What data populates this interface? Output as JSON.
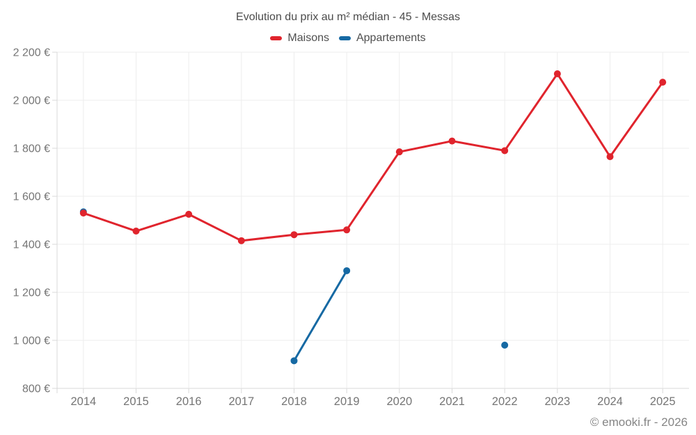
{
  "footer": {
    "text": "© emooki.fr - 2026"
  },
  "chart_data": {
    "type": "line",
    "title": "Evolution du prix au m² médian - 45 - Messas",
    "xlabel": "",
    "ylabel": "",
    "categories": [
      "2014",
      "2015",
      "2016",
      "2017",
      "2018",
      "2019",
      "2020",
      "2021",
      "2022",
      "2023",
      "2024",
      "2025"
    ],
    "series": [
      {
        "name": "Maisons",
        "color": "#e0242d",
        "values": [
          1530,
          1455,
          1525,
          1415,
          1440,
          1460,
          1785,
          1830,
          1790,
          2110,
          1765,
          2075
        ]
      },
      {
        "name": "Appartements",
        "color": "#1669a3",
        "values": [
          1535,
          null,
          null,
          null,
          915,
          1290,
          null,
          null,
          980,
          null,
          null,
          null
        ]
      }
    ],
    "ylim": [
      800,
      2200
    ],
    "ytick_step": 200,
    "ytick_labels": [
      "800 €",
      "1 000 €",
      "1 200 €",
      "1 400 €",
      "1 600 €",
      "1 800 €",
      "2 000 €",
      "2 200 €"
    ],
    "currency": "€",
    "grid": true,
    "legend_position": "top"
  }
}
